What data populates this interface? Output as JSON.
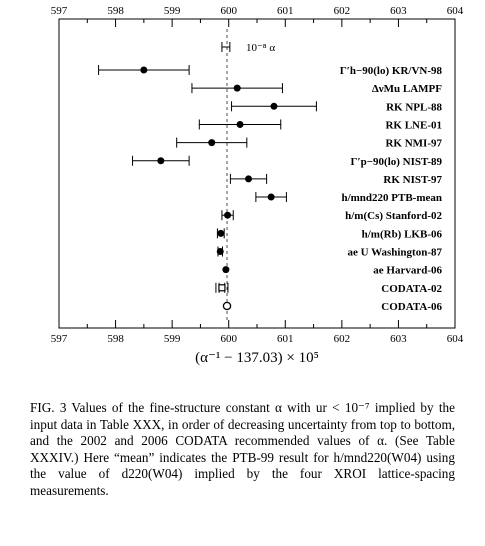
{
  "chart_data": {
    "type": "scatter",
    "xlabel": "(α⁻¹ − 137.03) × 10⁵",
    "xlim": [
      597,
      604
    ],
    "xticks": [
      "597",
      "598",
      "599",
      "600",
      "601",
      "602",
      "603",
      "604"
    ],
    "scale_note": "10⁻⁸ α",
    "series": [
      {
        "label": "Γ′h−90(lo) KR/VN-98",
        "center": 598.5,
        "error": 0.8,
        "marker": "filled"
      },
      {
        "label": "ΔνMu LAMPF",
        "center": 600.15,
        "error": 0.8,
        "marker": "filled"
      },
      {
        "label": "RK NPL-88",
        "center": 600.8,
        "error": 0.75,
        "marker": "filled"
      },
      {
        "label": "RK LNE-01",
        "center": 600.2,
        "error": 0.72,
        "marker": "filled"
      },
      {
        "label": "RK NMI-97",
        "center": 599.7,
        "error": 0.62,
        "marker": "filled"
      },
      {
        "label": "Γ′p−90(lo) NIST-89",
        "center": 598.8,
        "error": 0.5,
        "marker": "filled"
      },
      {
        "label": "RK NIST-97",
        "center": 600.35,
        "error": 0.32,
        "marker": "filled"
      },
      {
        "label": "h/mnd220 PTB-mean",
        "center": 600.75,
        "error": 0.27,
        "marker": "filled"
      },
      {
        "label": "h/m(Cs) Stanford-02",
        "center": 599.98,
        "error": 0.1,
        "marker": "filled"
      },
      {
        "label": "h/m(Rb) LKB-06",
        "center": 599.86,
        "error": 0.06,
        "marker": "filled"
      },
      {
        "label": "ae U Washington-87",
        "center": 599.85,
        "error": 0.04,
        "marker": "filled"
      },
      {
        "label": "ae Harvard-06",
        "center": 599.95,
        "error": 0.01,
        "marker": "filled"
      },
      {
        "label": "CODATA-02",
        "center": 599.88,
        "error": 0.05,
        "marker": "open-square"
      },
      {
        "label": "CODATA-06",
        "center": 599.97,
        "error": 0.01,
        "marker": "open-circle"
      }
    ],
    "scale_bar": {
      "center": 599.95,
      "halfwidth": 0.07
    }
  },
  "caption": "FIG. 3 Values of the fine-structure constant α with ur < 10⁻⁷ implied by the input data in Table XXX, in order of decreasing uncertainty from top to bottom, and the 2002 and 2006 CODATA recommended values of α. (See Table XXXIV.) Here “mean” indicates the PTB-99 result for h/mnd220(W04) using the value of d220(W04) implied by the four XROI lattice-spacing measurements."
}
